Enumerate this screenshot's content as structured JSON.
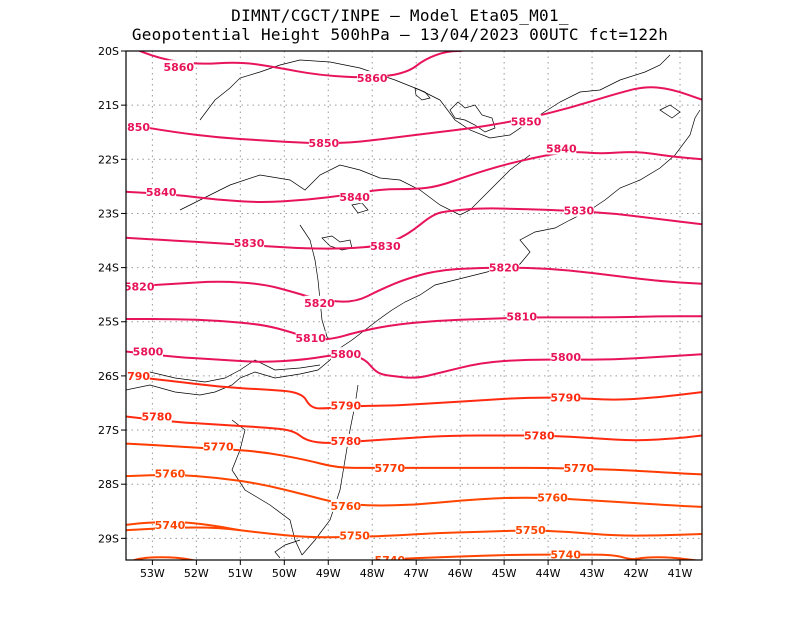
{
  "header": {
    "title_line1": "DIMNT/CGCT/INPE —  Model Eta05_M01_",
    "title_line2": "Geopotential Height 500hPa —  13/04/2023 00UTC fct=122h"
  },
  "chart_data": {
    "type": "contour_map",
    "field": "Geopotential Height 500hPa",
    "lon_range": [
      -53.6,
      -40.5
    ],
    "lat_range": [
      -29.4,
      -20.0
    ],
    "xtick_labels": [
      "53W",
      "52W",
      "51W",
      "50W",
      "49W",
      "48W",
      "47W",
      "46W",
      "45W",
      "44W",
      "43W",
      "42W",
      "41W"
    ],
    "ytick_labels": [
      "20S",
      "21S",
      "22S",
      "23S",
      "24S",
      "25S",
      "26S",
      "27S",
      "28S",
      "29S"
    ],
    "grid": "dotted",
    "contours": [
      {
        "level": 5860,
        "color": "#e8145a",
        "label_positions": [
          [
            -52.4,
            -20.3
          ],
          [
            -48.0,
            -20.5
          ]
        ],
        "path": [
          [
            -53.6,
            -19.9
          ],
          [
            -52.8,
            -20.15
          ],
          [
            -52.0,
            -20.25
          ],
          [
            -51.0,
            -20.2
          ],
          [
            -50.2,
            -20.3
          ],
          [
            -49.2,
            -20.45
          ],
          [
            -48.0,
            -20.5
          ],
          [
            -47.2,
            -20.4
          ],
          [
            -46.8,
            -20.15
          ],
          [
            -46.3,
            -20.0
          ],
          [
            -45.8,
            -20.0
          ],
          [
            -45.3,
            -19.7
          ]
        ]
      },
      {
        "level": 5850,
        "color": "#e8145a",
        "label_positions": [
          [
            -53.4,
            -21.4
          ],
          [
            -49.1,
            -21.7
          ],
          [
            -44.5,
            -21.3
          ]
        ],
        "path": [
          [
            -53.6,
            -21.35
          ],
          [
            -52.5,
            -21.5
          ],
          [
            -51.5,
            -21.6
          ],
          [
            -50.5,
            -21.65
          ],
          [
            -49.5,
            -21.7
          ],
          [
            -48.5,
            -21.7
          ],
          [
            -47.5,
            -21.6
          ],
          [
            -46.5,
            -21.5
          ],
          [
            -45.5,
            -21.4
          ],
          [
            -44.5,
            -21.25
          ],
          [
            -43.5,
            -21.05
          ],
          [
            -42.5,
            -20.8
          ],
          [
            -41.8,
            -20.65
          ],
          [
            -41.2,
            -20.7
          ],
          [
            -40.5,
            -20.9
          ]
        ]
      },
      {
        "level": 5840,
        "color": "#e8145a",
        "label_positions": [
          [
            -52.8,
            -22.6
          ],
          [
            -48.4,
            -22.7
          ],
          [
            -43.7,
            -21.8
          ]
        ],
        "path": [
          [
            -53.6,
            -22.6
          ],
          [
            -52.5,
            -22.65
          ],
          [
            -51.5,
            -22.75
          ],
          [
            -50.5,
            -22.8
          ],
          [
            -49.5,
            -22.75
          ],
          [
            -48.5,
            -22.65
          ],
          [
            -47.8,
            -22.55
          ],
          [
            -47.0,
            -22.55
          ],
          [
            -46.5,
            -22.5
          ],
          [
            -45.8,
            -22.3
          ],
          [
            -45.0,
            -22.1
          ],
          [
            -44.2,
            -21.95
          ],
          [
            -43.5,
            -21.85
          ],
          [
            -42.8,
            -21.9
          ],
          [
            -42.0,
            -21.85
          ],
          [
            -41.2,
            -21.95
          ],
          [
            -40.5,
            -22.0
          ]
        ]
      },
      {
        "level": 5830,
        "color": "#e8145a",
        "label_positions": [
          [
            -50.8,
            -23.55
          ],
          [
            -47.7,
            -23.6
          ],
          [
            -43.3,
            -22.95
          ]
        ],
        "path": [
          [
            -53.6,
            -23.45
          ],
          [
            -52.5,
            -23.5
          ],
          [
            -51.5,
            -23.55
          ],
          [
            -50.5,
            -23.6
          ],
          [
            -49.5,
            -23.65
          ],
          [
            -48.6,
            -23.65
          ],
          [
            -47.8,
            -23.6
          ],
          [
            -47.2,
            -23.4
          ],
          [
            -46.6,
            -23.0
          ],
          [
            -46.2,
            -22.95
          ],
          [
            -45.5,
            -22.9
          ],
          [
            -44.5,
            -22.92
          ],
          [
            -43.5,
            -22.95
          ],
          [
            -42.5,
            -23.0
          ],
          [
            -41.5,
            -23.1
          ],
          [
            -40.5,
            -23.2
          ]
        ]
      },
      {
        "level": 5820,
        "color": "#e8145a",
        "label_positions": [
          [
            -53.3,
            -24.35
          ],
          [
            -49.2,
            -24.65
          ],
          [
            -45.0,
            -24.0
          ]
        ],
        "path": [
          [
            -53.6,
            -24.35
          ],
          [
            -52.5,
            -24.3
          ],
          [
            -51.5,
            -24.25
          ],
          [
            -50.5,
            -24.3
          ],
          [
            -49.8,
            -24.45
          ],
          [
            -49.2,
            -24.6
          ],
          [
            -48.4,
            -24.65
          ],
          [
            -47.8,
            -24.4
          ],
          [
            -47.2,
            -24.2
          ],
          [
            -46.5,
            -24.05
          ],
          [
            -45.5,
            -24.0
          ],
          [
            -44.5,
            -24.0
          ],
          [
            -43.5,
            -24.05
          ],
          [
            -42.5,
            -24.15
          ],
          [
            -41.5,
            -24.25
          ],
          [
            -40.5,
            -24.3
          ]
        ]
      },
      {
        "level": 5810,
        "color": "#e8145a",
        "label_positions": [
          [
            -49.4,
            -25.3
          ],
          [
            -44.6,
            -24.9
          ]
        ],
        "path": [
          [
            -53.6,
            -24.95
          ],
          [
            -52.5,
            -24.95
          ],
          [
            -51.5,
            -24.98
          ],
          [
            -50.5,
            -25.05
          ],
          [
            -49.8,
            -25.2
          ],
          [
            -49.3,
            -25.35
          ],
          [
            -48.8,
            -25.3
          ],
          [
            -48.4,
            -25.2
          ],
          [
            -47.5,
            -25.05
          ],
          [
            -46.5,
            -24.98
          ],
          [
            -45.5,
            -24.95
          ],
          [
            -44.5,
            -24.92
          ],
          [
            -43.5,
            -24.92
          ],
          [
            -42.5,
            -24.92
          ],
          [
            -41.5,
            -24.9
          ],
          [
            -40.5,
            -24.9
          ]
        ]
      },
      {
        "level": 5800,
        "color": "#e8145a",
        "label_positions": [
          [
            -53.1,
            -25.55
          ],
          [
            -48.6,
            -25.6
          ],
          [
            -43.6,
            -25.65
          ]
        ],
        "path": [
          [
            -53.6,
            -25.55
          ],
          [
            -52.5,
            -25.65
          ],
          [
            -51.5,
            -25.7
          ],
          [
            -50.5,
            -25.75
          ],
          [
            -49.5,
            -25.7
          ],
          [
            -48.8,
            -25.6
          ],
          [
            -48.2,
            -25.65
          ],
          [
            -47.9,
            -25.95
          ],
          [
            -47.6,
            -26.0
          ],
          [
            -47.0,
            -26.05
          ],
          [
            -46.5,
            -25.95
          ],
          [
            -45.5,
            -25.75
          ],
          [
            -44.5,
            -25.7
          ],
          [
            -43.5,
            -25.7
          ],
          [
            -42.5,
            -25.7
          ],
          [
            -41.5,
            -25.65
          ],
          [
            -40.5,
            -25.6
          ]
        ]
      },
      {
        "level": 5790,
        "color": "#ff2a10",
        "label_positions": [
          [
            -53.4,
            -26.0
          ],
          [
            -48.6,
            -26.55
          ],
          [
            -43.6,
            -26.4
          ]
        ],
        "path": [
          [
            -53.6,
            -26.0
          ],
          [
            -52.5,
            -26.1
          ],
          [
            -51.5,
            -26.2
          ],
          [
            -50.5,
            -26.25
          ],
          [
            -49.6,
            -26.3
          ],
          [
            -49.4,
            -26.6
          ],
          [
            -49.0,
            -26.6
          ],
          [
            -48.3,
            -26.55
          ],
          [
            -47.5,
            -26.55
          ],
          [
            -46.5,
            -26.5
          ],
          [
            -45.5,
            -26.45
          ],
          [
            -44.5,
            -26.4
          ],
          [
            -43.5,
            -26.4
          ],
          [
            -42.5,
            -26.45
          ],
          [
            -41.5,
            -26.4
          ],
          [
            -40.5,
            -26.3
          ]
        ]
      },
      {
        "level": 5780,
        "color": "#ff2a10",
        "label_positions": [
          [
            -52.9,
            -26.75
          ],
          [
            -48.6,
            -27.2
          ],
          [
            -44.2,
            -27.1
          ]
        ],
        "path": [
          [
            -53.6,
            -26.75
          ],
          [
            -52.5,
            -26.85
          ],
          [
            -51.5,
            -26.9
          ],
          [
            -50.5,
            -26.95
          ],
          [
            -49.8,
            -27.0
          ],
          [
            -49.5,
            -27.2
          ],
          [
            -49.0,
            -27.25
          ],
          [
            -48.2,
            -27.2
          ],
          [
            -47.2,
            -27.15
          ],
          [
            -46.2,
            -27.1
          ],
          [
            -45.0,
            -27.1
          ],
          [
            -44.0,
            -27.1
          ],
          [
            -43.0,
            -27.15
          ],
          [
            -42.0,
            -27.2
          ],
          [
            -41.0,
            -27.15
          ],
          [
            -40.5,
            -27.1
          ]
        ]
      },
      {
        "level": 5770,
        "color": "#ff3a00",
        "label_positions": [
          [
            -51.5,
            -27.3
          ],
          [
            -47.6,
            -27.7
          ],
          [
            -43.3,
            -27.7
          ]
        ],
        "path": [
          [
            -53.6,
            -27.25
          ],
          [
            -52.5,
            -27.3
          ],
          [
            -51.5,
            -27.35
          ],
          [
            -50.5,
            -27.4
          ],
          [
            -49.5,
            -27.55
          ],
          [
            -48.8,
            -27.7
          ],
          [
            -48.0,
            -27.7
          ],
          [
            -47.0,
            -27.7
          ],
          [
            -46.0,
            -27.7
          ],
          [
            -45.0,
            -27.7
          ],
          [
            -44.0,
            -27.7
          ],
          [
            -43.0,
            -27.72
          ],
          [
            -42.0,
            -27.75
          ],
          [
            -41.0,
            -27.8
          ],
          [
            -40.5,
            -27.82
          ]
        ]
      },
      {
        "level": 5760,
        "color": "#ff4500",
        "label_positions": [
          [
            -52.6,
            -27.8
          ],
          [
            -48.6,
            -28.4
          ],
          [
            -43.9,
            -28.25
          ]
        ],
        "path": [
          [
            -53.6,
            -27.85
          ],
          [
            -52.5,
            -27.82
          ],
          [
            -51.5,
            -27.88
          ],
          [
            -50.5,
            -28.0
          ],
          [
            -49.5,
            -28.2
          ],
          [
            -48.8,
            -28.35
          ],
          [
            -48.0,
            -28.4
          ],
          [
            -47.0,
            -28.38
          ],
          [
            -46.0,
            -28.3
          ],
          [
            -45.0,
            -28.25
          ],
          [
            -44.0,
            -28.25
          ],
          [
            -43.0,
            -28.3
          ],
          [
            -42.0,
            -28.35
          ],
          [
            -41.0,
            -28.4
          ],
          [
            -40.5,
            -28.42
          ]
        ]
      },
      {
        "level": 5750,
        "color": "#ff4500",
        "label_positions": [
          [
            -48.4,
            -28.95
          ],
          [
            -44.4,
            -28.85
          ]
        ],
        "path": [
          [
            -53.6,
            -28.85
          ],
          [
            -52.5,
            -28.8
          ],
          [
            -51.5,
            -28.8
          ],
          [
            -50.5,
            -28.9
          ],
          [
            -49.5,
            -28.98
          ],
          [
            -48.5,
            -28.98
          ],
          [
            -47.5,
            -28.95
          ],
          [
            -46.5,
            -28.9
          ],
          [
            -45.5,
            -28.88
          ],
          [
            -44.5,
            -28.85
          ],
          [
            -43.5,
            -28.88
          ],
          [
            -42.5,
            -28.95
          ],
          [
            -41.5,
            -28.95
          ],
          [
            -40.5,
            -28.92
          ]
        ]
      },
      {
        "level": 5740,
        "color": "#ff4500",
        "label_positions": [
          [
            -52.6,
            -28.75
          ],
          [
            -47.6,
            -29.4
          ],
          [
            -43.6,
            -29.3
          ]
        ],
        "path": [
          [
            -53.6,
            -28.75
          ],
          [
            -53.0,
            -28.7
          ],
          [
            -52.2,
            -28.7
          ],
          [
            -51.5,
            -28.78
          ],
          [
            -51.0,
            -28.85
          ]
        ]
      },
      {
        "level": 5740,
        "color": "#ff4500",
        "label_positions": [],
        "path": [
          [
            -53.6,
            -29.45
          ],
          [
            -53.2,
            -29.35
          ],
          [
            -52.4,
            -29.35
          ],
          [
            -51.8,
            -29.45
          ]
        ]
      },
      {
        "level": 5740,
        "color": "#ff4500",
        "label_positions": [],
        "path": [
          [
            -48.6,
            -29.45
          ],
          [
            -47.5,
            -29.38
          ],
          [
            -46.5,
            -29.35
          ],
          [
            -45.5,
            -29.32
          ],
          [
            -44.5,
            -29.3
          ],
          [
            -43.5,
            -29.3
          ],
          [
            -42.5,
            -29.3
          ],
          [
            -42.1,
            -29.4
          ],
          [
            -41.8,
            -29.35
          ],
          [
            -41.2,
            -29.35
          ],
          [
            -40.5,
            -29.42
          ]
        ]
      }
    ]
  }
}
